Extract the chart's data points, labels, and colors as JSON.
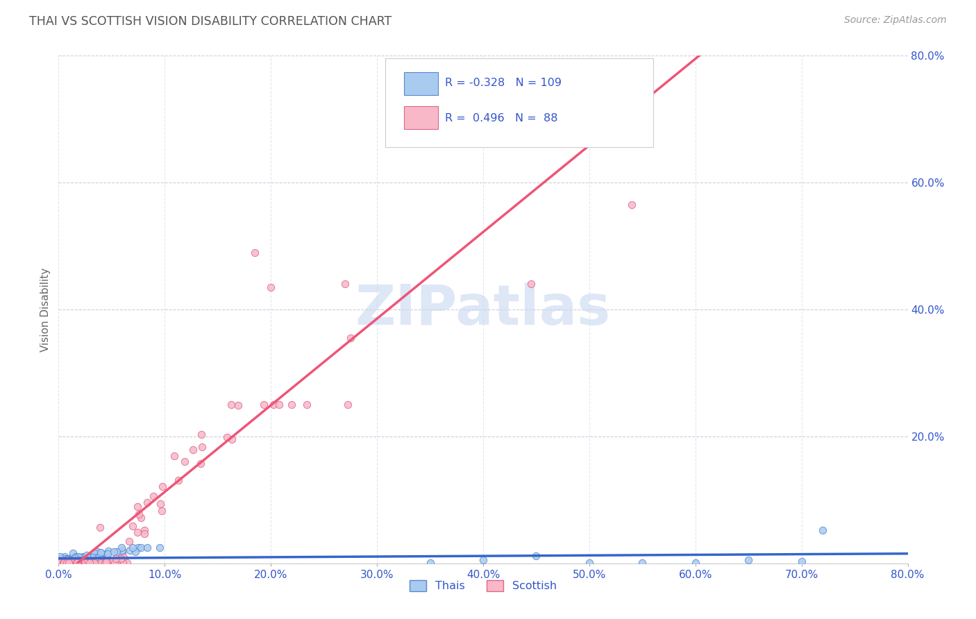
{
  "title": "THAI VS SCOTTISH VISION DISABILITY CORRELATION CHART",
  "source": "Source: ZipAtlas.com",
  "ylabel": "Vision Disability",
  "thai_R": -0.328,
  "thai_N": 109,
  "scottish_R": 0.496,
  "scottish_N": 88,
  "thai_color": "#aacbf0",
  "thai_edge_color": "#5588cc",
  "scottish_color": "#f9b8c8",
  "scottish_edge_color": "#dd6688",
  "thai_line_color": "#3366cc",
  "scottish_line_color": "#ee5577",
  "background_color": "#ffffff",
  "grid_color": "#ccccdd",
  "axis_label_color": "#3355cc",
  "watermark_color": "#c8d8f0",
  "xlim": [
    0.0,
    0.8
  ],
  "ylim": [
    0.0,
    0.8
  ],
  "xticks": [
    0.0,
    0.1,
    0.2,
    0.3,
    0.4,
    0.5,
    0.6,
    0.7,
    0.8
  ],
  "yticks": [
    0.0,
    0.2,
    0.4,
    0.6,
    0.8
  ],
  "legend_line1": "R = -0.328   N = 109",
  "legend_line2": "R =  0.496   N =  88"
}
